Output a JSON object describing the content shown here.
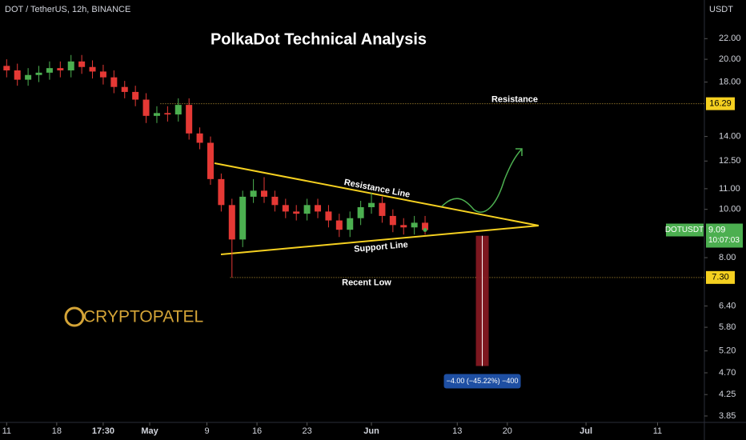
{
  "chart_data": {
    "type": "candlestick",
    "header": "DOT / TetherUS, 12h, BINANCE",
    "title": "PolkaDot Technical Analysis",
    "y_axis_title": "USDT",
    "log_scale": true,
    "grid": false,
    "up_color": "#4caf50",
    "down_color": "#e53935",
    "ylim": [
      3.71,
      26.3
    ],
    "yticks": [
      {
        "value": 3.85,
        "label": "3.85"
      },
      {
        "value": 4.25,
        "label": "4.25"
      },
      {
        "value": 4.7,
        "label": "4.70"
      },
      {
        "value": 5.2,
        "label": "5.20"
      },
      {
        "value": 5.8,
        "label": "5.80"
      },
      {
        "value": 6.4,
        "label": "6.40"
      },
      {
        "value": 8,
        "label": "8.00"
      },
      {
        "value": 10,
        "label": "10.00"
      },
      {
        "value": 11,
        "label": "11.00"
      },
      {
        "value": 12.5,
        "label": "12.50"
      },
      {
        "value": 14,
        "label": "14.00"
      },
      {
        "value": 18,
        "label": "18.00"
      },
      {
        "value": 20,
        "label": "20.00"
      },
      {
        "value": 22,
        "label": "22.00"
      }
    ],
    "xlim": [
      -1.86,
      195.1
    ],
    "xticks": [
      {
        "value": 0,
        "label": "11"
      },
      {
        "value": 14,
        "label": "18"
      },
      {
        "value": 27,
        "label": "17:30"
      },
      {
        "value": 40,
        "label": "May"
      },
      {
        "value": 56,
        "label": "9"
      },
      {
        "value": 70,
        "label": "16"
      },
      {
        "value": 84,
        "label": "23"
      },
      {
        "value": 102,
        "label": "Jun"
      },
      {
        "value": 126,
        "label": "13"
      },
      {
        "value": 140,
        "label": "20"
      },
      {
        "value": 162,
        "label": "Jul"
      },
      {
        "value": 182,
        "label": "11"
      }
    ],
    "x": [
      0,
      3,
      6,
      9,
      12,
      15,
      18,
      21,
      24,
      27,
      30,
      33,
      36,
      39,
      42,
      45,
      48,
      51,
      54,
      57,
      60,
      63,
      66,
      69,
      72,
      75,
      78,
      81,
      84,
      87,
      90,
      93,
      96,
      99,
      102,
      105,
      108,
      111,
      114,
      117
    ],
    "open": [
      19.4,
      19.0,
      18.2,
      18.6,
      18.8,
      19.2,
      19.0,
      19.8,
      19.3,
      18.9,
      18.4,
      17.6,
      17.2,
      16.6,
      15.4,
      15.6,
      15.5,
      16.2,
      14.2,
      13.6,
      11.5,
      10.2,
      8.7,
      10.6,
      10.9,
      10.6,
      10.2,
      9.9,
      9.8,
      10.2,
      9.9,
      9.5,
      9.1,
      9.6,
      10.1,
      10.3,
      9.7,
      9.3,
      9.2,
      9.4
    ],
    "high": [
      20.0,
      19.6,
      19.2,
      19.4,
      19.8,
      19.8,
      20.4,
      20.4,
      19.9,
      19.5,
      19.0,
      18.1,
      17.7,
      17.1,
      16.1,
      16.1,
      16.7,
      16.7,
      14.6,
      14.0,
      11.8,
      10.5,
      10.9,
      11.5,
      11.6,
      10.9,
      10.5,
      10.2,
      10.5,
      10.5,
      10.2,
      9.8,
      9.9,
      10.4,
      10.8,
      10.6,
      10.0,
      9.6,
      9.7,
      9.7
    ],
    "low": [
      18.4,
      17.7,
      17.7,
      18.0,
      18.2,
      18.4,
      18.4,
      18.7,
      18.3,
      17.8,
      17.1,
      16.7,
      16.1,
      14.9,
      14.9,
      15.0,
      15.0,
      13.8,
      13.2,
      11.2,
      9.9,
      7.3,
      8.4,
      10.3,
      10.3,
      9.9,
      9.6,
      9.5,
      9.5,
      9.6,
      9.2,
      8.8,
      8.8,
      9.3,
      9.8,
      9.4,
      9.0,
      8.9,
      8.9,
      8.9
    ],
    "close": [
      19.0,
      18.2,
      18.6,
      18.8,
      19.2,
      19.0,
      19.8,
      19.3,
      18.9,
      18.4,
      17.6,
      17.2,
      16.6,
      15.4,
      15.6,
      15.5,
      16.2,
      14.2,
      13.6,
      11.5,
      10.2,
      8.7,
      10.6,
      10.9,
      10.6,
      10.2,
      9.9,
      9.8,
      10.2,
      9.9,
      9.5,
      9.1,
      9.6,
      10.1,
      10.3,
      9.7,
      9.3,
      9.2,
      9.4,
      9.09
    ],
    "hlines": [
      {
        "name": "Resistance",
        "value": 16.29,
        "tag": "16.29",
        "x": 43
      },
      {
        "name": "Recent Low",
        "value": 7.3,
        "tag": "7.30",
        "x": 62.5
      }
    ],
    "current": {
      "symbol": "DOTUSDT",
      "price": 9.09,
      "countdown": "10:07:03"
    },
    "measure": {
      "x": 133,
      "from": 8.85,
      "to": 4.85,
      "label": "−4.00 (−45.22%) −400"
    },
    "annotations": {
      "resistance_line": "Resistance Line",
      "support_line": "Support Line",
      "brand": "CRYPTOPATEL"
    }
  }
}
